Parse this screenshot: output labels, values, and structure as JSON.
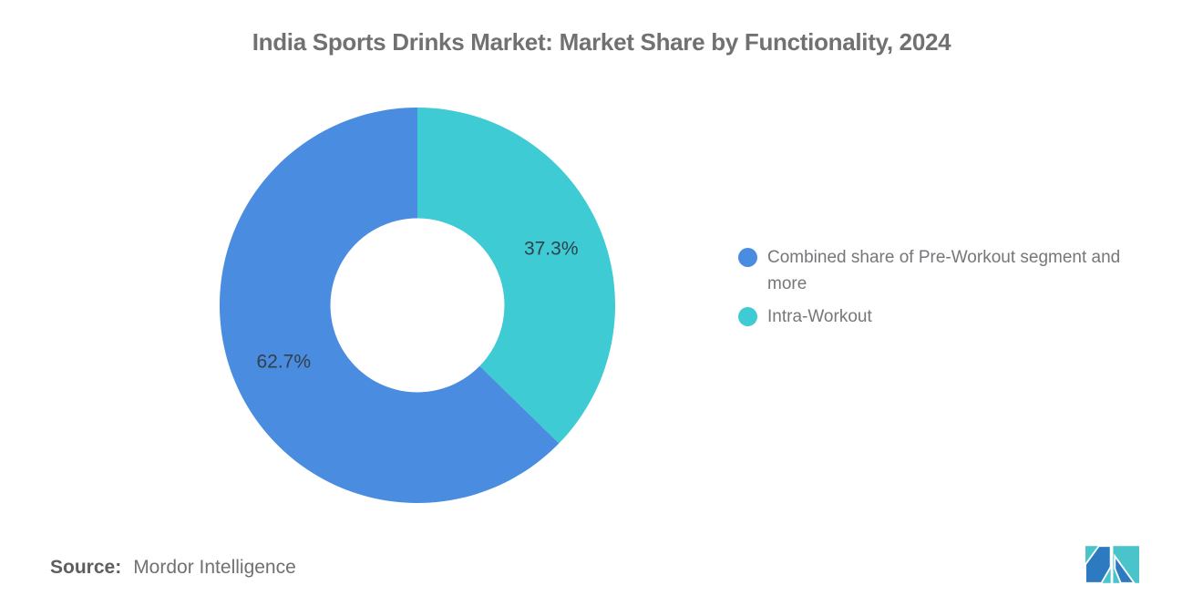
{
  "title": "India Sports Drinks Market: Market Share by Functionality, 2024",
  "chart_data": {
    "type": "pie",
    "subtype": "donut",
    "title": "India Sports Drinks Market: Market Share by Functionality, 2024",
    "categories": [
      "Combined share of Pre-Workout segment and more",
      "Intra-Workout"
    ],
    "values": [
      62.7,
      37.3
    ],
    "slices": [
      {
        "label": "Combined share of Pre-Workout segment and more",
        "value": 62.7,
        "display": "62.7%",
        "color": "#4a8cdf"
      },
      {
        "label": "Intra-Workout",
        "value": 37.3,
        "display": "37.3%",
        "color": "#3ecbd3"
      }
    ],
    "start_angle": "12-oclock",
    "first_slice_direction": "counterclockwise",
    "inner_radius_pct": 44,
    "data_label_color": "#32404a",
    "legend_position": "right",
    "background": "#ffffff"
  },
  "legend": {
    "items": [
      "Combined share of Pre-Workout segment and more",
      "Intra-Workout"
    ]
  },
  "source": {
    "label": "Source:",
    "value": "Mordor Intelligence"
  },
  "logo": {
    "name": "mordor-intelligence-logo",
    "blue": "#2d7ac0",
    "teal": "#4ac3cb"
  }
}
